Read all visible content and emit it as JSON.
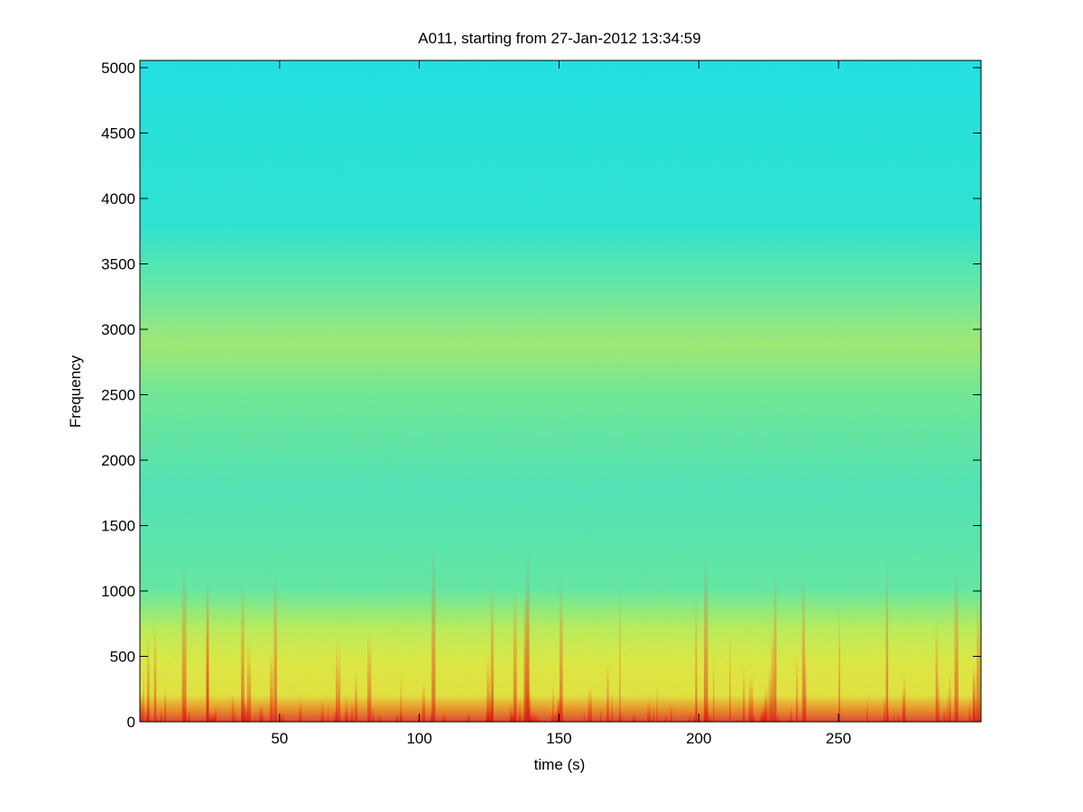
{
  "chart_data": {
    "type": "spectrogram",
    "title": "A011, starting from 27-Jan-2012 13:34:59",
    "xlabel": "time (s)",
    "ylabel": "Frequency",
    "xlim": [
      0,
      301
    ],
    "ylim": [
      0,
      5055
    ],
    "xticks": [
      50,
      100,
      150,
      200,
      250
    ],
    "yticks": [
      0,
      500,
      1000,
      1500,
      2000,
      2500,
      3000,
      3500,
      4000,
      4500,
      5000
    ]
  }
}
